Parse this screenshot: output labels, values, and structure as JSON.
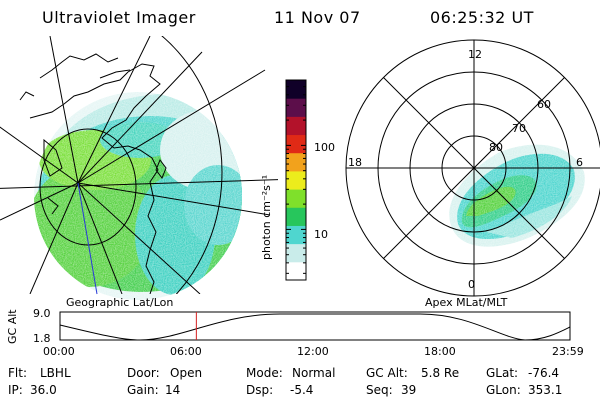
{
  "header": {
    "instrument": "Ultraviolet Imager",
    "date": "11 Nov 07",
    "time": "06:25:32 UT"
  },
  "geographic_panel": {
    "label": "Geographic Lat/Lon"
  },
  "apex_panel": {
    "label": "Apex MLat/MLT",
    "mlt_labels": [
      "12",
      "18",
      "6",
      "0"
    ],
    "lat_labels": [
      "60",
      "70",
      "80"
    ]
  },
  "colorbar": {
    "unit_label": "photon cm⁻²s⁻¹",
    "scale": "log",
    "tick_labels": [
      "100",
      "10"
    ],
    "tick_values": [
      100,
      10
    ],
    "range": [
      2.5,
      600
    ],
    "colors": [
      "#ffffff",
      "#c9ecea",
      "#4fd6cf",
      "#27c65c",
      "#7fe02b",
      "#ecec1c",
      "#f2a21c",
      "#e02a16",
      "#b3122a",
      "#5c0e4a",
      "#100028"
    ]
  },
  "altitude_track": {
    "axis_label": "GC Alt",
    "y_ticks": [
      "9.0",
      "1.8"
    ],
    "x_ticks": [
      "00:00",
      "06:00",
      "12:00",
      "18:00",
      "23:59"
    ],
    "current_time_marker": "06:25",
    "marker_color": "#d42020"
  },
  "status": {
    "row1": [
      {
        "key": "Flt:",
        "value": "LBHL"
      },
      {
        "key": "Door:",
        "value": "Open"
      },
      {
        "key": "Mode:",
        "value": "Normal"
      },
      {
        "key": "GC Alt:",
        "value": "5.8 Re"
      },
      {
        "key": "GLat:",
        "value": "-76.4"
      }
    ],
    "row2": [
      {
        "key": "IP:",
        "value": "36.0"
      },
      {
        "key": "Gain:",
        "value": "14"
      },
      {
        "key": "Dsp:",
        "value": "-5.4"
      },
      {
        "key": "Seq:",
        "value": "39"
      },
      {
        "key": "GLon:",
        "value": "353.1"
      }
    ]
  }
}
